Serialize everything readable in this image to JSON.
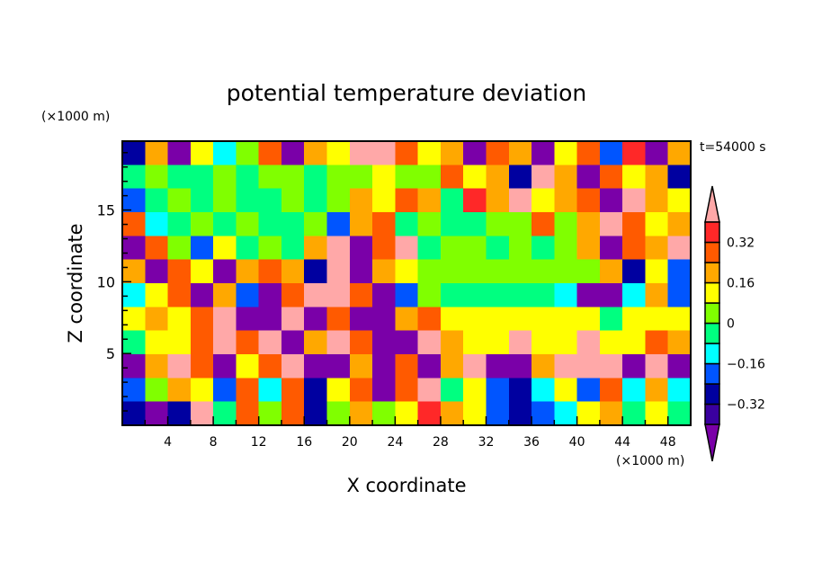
{
  "chart_data": {
    "type": "heatmap",
    "title": "potential temperature deviation",
    "xlabel": "X coordinate",
    "ylabel": "Z coordinate",
    "x_unit": "(×1000 m)",
    "y_unit": "(×1000 m)",
    "time_label": "t=54000 s",
    "xlim": [
      0,
      50
    ],
    "ylim": [
      0,
      19.8
    ],
    "x_ticks": [
      4,
      8,
      12,
      16,
      20,
      24,
      28,
      32,
      36,
      40,
      44,
      48
    ],
    "x_tick_labels": [
      "4",
      "8",
      "12",
      "16",
      "20",
      "24",
      "28",
      "32",
      "36",
      "40",
      "44",
      "48"
    ],
    "y_ticks": [
      5,
      10,
      15
    ],
    "y_tick_labels": [
      "5",
      "10",
      "15"
    ],
    "colorbar": {
      "levels": [
        -0.4,
        -0.32,
        -0.24,
        -0.16,
        -0.08,
        0,
        0.08,
        0.16,
        0.24,
        0.32,
        0.4
      ],
      "labels": [
        {
          "value": 0.32,
          "text": "0.32"
        },
        {
          "value": 0.16,
          "text": "0.16"
        },
        {
          "value": 0,
          "text": "0"
        },
        {
          "value": -0.16,
          "text": "−0.16"
        },
        {
          "value": -0.32,
          "text": "−0.32"
        }
      ],
      "colors": [
        "#7a00a8",
        "#3a00a0",
        "#0000a0",
        "#0055ff",
        "#00ffff",
        "#00ff80",
        "#80ff00",
        "#ffff00",
        "#ffa800",
        "#ff5a00",
        "#ff2828",
        "#ffa8a8"
      ]
    },
    "grid_x_centers": [
      1,
      3,
      5,
      7,
      9,
      11,
      13,
      15,
      17,
      19,
      21,
      23,
      25,
      27,
      29,
      31,
      33,
      35,
      37,
      39,
      41,
      43,
      45,
      47,
      49
    ],
    "grid_z_centers": [
      19,
      17.4,
      15.8,
      14.2,
      12.6,
      11,
      9.4,
      7.8,
      6.2,
      4.6,
      3,
      1.4
    ],
    "values": [
      [
        -0.3,
        0.2,
        -0.42,
        0.1,
        -0.1,
        0.05,
        0.3,
        -0.42,
        0.2,
        0.1,
        0.45,
        0.45,
        0.3,
        0.1,
        0.2,
        -0.42,
        0.3,
        0.2,
        -0.42,
        0.1,
        0.3,
        -0.2,
        0.35,
        -0.42,
        0.2
      ],
      [
        -0.05,
        0.05,
        -0.05,
        -0.05,
        0.05,
        -0.05,
        0.05,
        0.05,
        -0.05,
        0.05,
        0.05,
        0.1,
        0.05,
        0.05,
        0.3,
        0.1,
        0.2,
        -0.3,
        0.45,
        0.2,
        -0.42,
        0.3,
        0.1,
        0.2,
        -0.3
      ],
      [
        -0.2,
        -0.05,
        0.05,
        -0.05,
        0.05,
        -0.05,
        -0.05,
        0.05,
        -0.05,
        0.05,
        0.2,
        0.1,
        0.3,
        0.2,
        -0.05,
        0.35,
        0.2,
        0.45,
        0.1,
        0.2,
        0.3,
        -0.42,
        0.45,
        0.2,
        0.1
      ],
      [
        0.3,
        -0.1,
        -0.05,
        0.05,
        -0.05,
        0.05,
        -0.05,
        -0.05,
        0.05,
        -0.2,
        0.2,
        0.3,
        -0.05,
        0.05,
        -0.05,
        -0.05,
        0.05,
        0.05,
        0.3,
        0.05,
        0.2,
        0.45,
        0.3,
        0.1,
        0.2
      ],
      [
        -0.42,
        0.3,
        0.05,
        -0.2,
        0.1,
        -0.05,
        0.05,
        -0.05,
        0.2,
        0.45,
        -0.42,
        0.3,
        0.45,
        -0.05,
        0.05,
        0.05,
        -0.05,
        0.05,
        -0.05,
        0.05,
        0.2,
        -0.42,
        0.3,
        0.2,
        0.45
      ],
      [
        0.2,
        -0.42,
        0.3,
        0.1,
        -0.42,
        0.2,
        0.3,
        0.2,
        -0.3,
        0.45,
        -0.42,
        0.2,
        0.1,
        0.05,
        0.05,
        0.05,
        0.05,
        0.05,
        0.05,
        0.05,
        0.05,
        0.2,
        -0.3,
        0.1,
        -0.2
      ],
      [
        -0.1,
        0.1,
        0.3,
        -0.42,
        0.2,
        -0.2,
        -0.42,
        0.3,
        0.45,
        0.45,
        0.3,
        -0.42,
        -0.2,
        0.05,
        -0.05,
        -0.05,
        -0.05,
        -0.05,
        -0.05,
        -0.1,
        -0.42,
        -0.42,
        -0.1,
        0.2,
        -0.2
      ],
      [
        0.1,
        0.2,
        0.15,
        0.3,
        0.45,
        -0.42,
        -0.42,
        0.45,
        -0.42,
        0.3,
        -0.42,
        -0.42,
        0.2,
        0.3,
        0.15,
        0.15,
        0.1,
        0.15,
        0.15,
        0.15,
        0.1,
        -0.05,
        0.1,
        0.15,
        0.1
      ],
      [
        -0.05,
        0.1,
        0.15,
        0.3,
        0.45,
        0.3,
        0.45,
        -0.42,
        0.2,
        0.45,
        0.3,
        -0.42,
        -0.42,
        0.45,
        0.2,
        0.1,
        0.15,
        0.45,
        0.1,
        0.15,
        0.45,
        0.1,
        0.15,
        0.3,
        0.2
      ],
      [
        -0.42,
        0.2,
        0.45,
        0.3,
        -0.42,
        0.1,
        0.3,
        0.45,
        -0.42,
        -0.42,
        0.2,
        -0.42,
        0.3,
        -0.42,
        0.2,
        0.45,
        -0.42,
        -0.42,
        0.2,
        0.45,
        0.45,
        0.45,
        -0.42,
        0.45,
        -0.42
      ],
      [
        -0.2,
        0.05,
        0.2,
        0.1,
        -0.2,
        0.3,
        -0.1,
        0.3,
        -0.3,
        0.1,
        0.3,
        -0.42,
        0.3,
        0.45,
        -0.05,
        0.1,
        -0.2,
        -0.3,
        -0.1,
        0.1,
        -0.2,
        0.3,
        -0.1,
        0.2,
        -0.1
      ],
      [
        -0.3,
        -0.42,
        -0.3,
        0.45,
        -0.05,
        0.3,
        0.05,
        0.3,
        -0.3,
        0.05,
        0.2,
        0.05,
        0.1,
        0.35,
        0.2,
        0.1,
        -0.2,
        -0.3,
        -0.2,
        -0.1,
        0.1,
        0.2,
        -0.05,
        0.1,
        -0.05
      ]
    ]
  }
}
